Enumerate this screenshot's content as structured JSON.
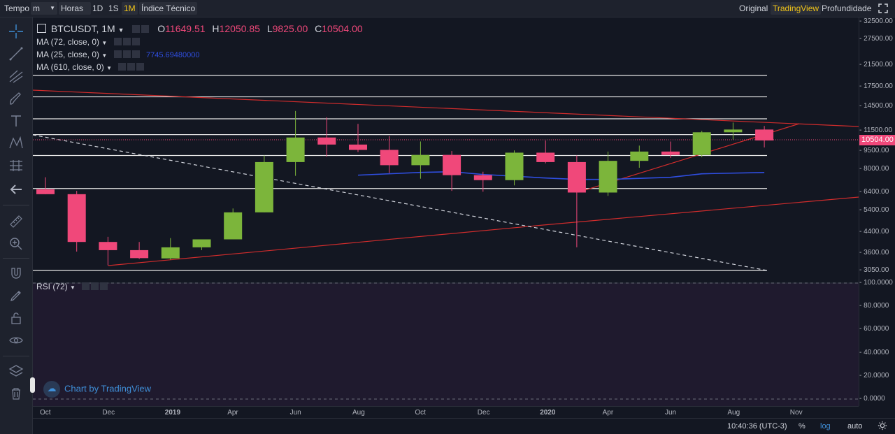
{
  "toolbar": {
    "time_label": "Tempo",
    "interval_select": "m",
    "hours_select": "Horas",
    "intervals": [
      "1D",
      "1S",
      "1M"
    ],
    "active_interval": "1M",
    "indicators": "Índice Técnico",
    "views": [
      "Original",
      "TradingView",
      "Profundidade"
    ],
    "active_view": "TradingView"
  },
  "legend": {
    "symbol": "BTCUSDT, 1M",
    "open_label": "O",
    "open": "11649.51",
    "high_label": "H",
    "high": "12050.85",
    "low_label": "L",
    "low": "9825.00",
    "close_label": "C",
    "close": "10504.00",
    "ma1": "MA (72, close, 0)",
    "ma2": "MA (25, close, 0)",
    "ma2_value": "7745.69480000",
    "ma3": "MA (610, close, 0)",
    "rsi": "RSI (72)"
  },
  "price_axis": {
    "ticks": [
      "32500.00",
      "27500.00",
      "21500.00",
      "17500.00",
      "14500.00",
      "11500.00",
      "9500.00",
      "8000.00",
      "6400.00",
      "5400.00",
      "4400.00",
      "3600.00",
      "3050.00"
    ],
    "current_price": "10504.00"
  },
  "rsi_axis": {
    "ticks": [
      "100.0000",
      "80.0000",
      "60.0000",
      "40.0000",
      "20.0000",
      "0.0000"
    ]
  },
  "time_axis": {
    "labels": [
      "Oct",
      "Dec",
      "2019",
      "Apr",
      "Jun",
      "Aug",
      "Oct",
      "Dec",
      "2020",
      "Apr",
      "Jun",
      "Aug",
      "Nov"
    ]
  },
  "candles": [
    {
      "month": "Oct 2018",
      "o": 6600,
      "h": 7400,
      "l": 6300,
      "c": 6300
    },
    {
      "month": "Nov 2018",
      "o": 6300,
      "h": 6500,
      "l": 3650,
      "c": 4000
    },
    {
      "month": "Dec 2018",
      "o": 4000,
      "h": 4200,
      "l": 3200,
      "c": 3700
    },
    {
      "month": "Jan 2019",
      "o": 3700,
      "h": 4000,
      "l": 3400,
      "c": 3430
    },
    {
      "month": "Feb 2019",
      "o": 3420,
      "h": 4150,
      "l": 3380,
      "c": 3800
    },
    {
      "month": "Mar 2019",
      "o": 3800,
      "h": 4100,
      "l": 3700,
      "c": 4100
    },
    {
      "month": "Apr 2019",
      "o": 4100,
      "h": 5500,
      "l": 4100,
      "c": 5300
    },
    {
      "month": "May 2019",
      "o": 5300,
      "h": 9100,
      "l": 5300,
      "c": 8550
    },
    {
      "month": "Jun 2019",
      "o": 8550,
      "h": 13900,
      "l": 7500,
      "c": 10800
    },
    {
      "month": "Jul 2019",
      "o": 10800,
      "h": 13100,
      "l": 9000,
      "c": 10100
    },
    {
      "month": "Aug 2019",
      "o": 10100,
      "h": 12300,
      "l": 9400,
      "c": 9600
    },
    {
      "month": "Sep 2019",
      "o": 9600,
      "h": 10950,
      "l": 7700,
      "c": 8300
    },
    {
      "month": "Oct 2019",
      "o": 8300,
      "h": 10400,
      "l": 7300,
      "c": 9150
    },
    {
      "month": "Nov 2019",
      "o": 9150,
      "h": 9500,
      "l": 6500,
      "c": 7550
    },
    {
      "month": "Dec 2019",
      "o": 7550,
      "h": 7800,
      "l": 6450,
      "c": 7200
    },
    {
      "month": "Jan 2020",
      "o": 7200,
      "h": 9550,
      "l": 6850,
      "c": 9350
    },
    {
      "month": "Feb 2020",
      "o": 9350,
      "h": 10500,
      "l": 8450,
      "c": 8550
    },
    {
      "month": "Mar 2020",
      "o": 8550,
      "h": 9100,
      "l": 3800,
      "c": 6400
    },
    {
      "month": "Apr 2020",
      "o": 6400,
      "h": 9450,
      "l": 6200,
      "c": 8650
    },
    {
      "month": "May 2020",
      "o": 8650,
      "h": 10000,
      "l": 8100,
      "c": 9450
    },
    {
      "month": "Jun 2020",
      "o": 9450,
      "h": 10400,
      "l": 8900,
      "c": 9150
    },
    {
      "month": "Jul 2020",
      "o": 9150,
      "h": 11500,
      "l": 8950,
      "c": 11350
    },
    {
      "month": "Aug 2020",
      "o": 11350,
      "h": 12450,
      "l": 10600,
      "c": 11650
    },
    {
      "month": "Sep 2020",
      "o": 11650,
      "h": 12050,
      "l": 9825,
      "c": 10504
    }
  ],
  "ma25_line": [
    {
      "month": "Aug 2019",
      "v": 7550
    },
    {
      "month": "Oct 2019",
      "v": 7750
    },
    {
      "month": "Nov 2019",
      "v": 7800
    },
    {
      "month": "Dec 2019",
      "v": 7600
    },
    {
      "month": "Feb 2020",
      "v": 7350
    },
    {
      "month": "Mar 2020",
      "v": 7250
    },
    {
      "month": "Apr 2020",
      "v": 7250
    },
    {
      "month": "Jun 2020",
      "v": 7400
    },
    {
      "month": "Jul 2020",
      "v": 7650
    },
    {
      "month": "Sep 2020",
      "v": 7746
    }
  ],
  "horizontal_levels": [
    19500,
    15900,
    12900,
    11100,
    9100,
    6650,
    3050
  ],
  "colors": {
    "up": "#7cb53b",
    "down": "#f0487a",
    "ma": "#2f4ee0",
    "trend": "#d02c2c",
    "level": "#e6e6e6",
    "accent": "#f0c419",
    "watermark": "#3f8fd8"
  },
  "status": {
    "time": "10:40:36 (UTC-3)",
    "percent": "%",
    "log": "log",
    "auto": "auto"
  },
  "watermark": "Chart by TradingView"
}
